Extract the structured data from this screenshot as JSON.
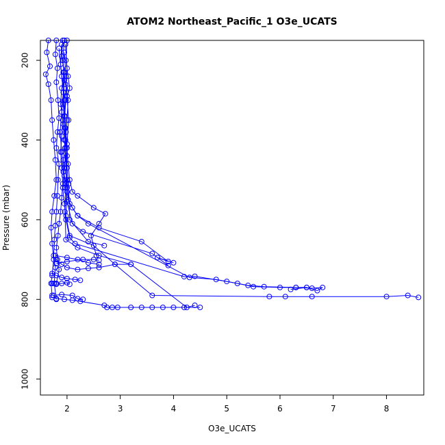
{
  "chart_data": {
    "type": "scatter",
    "title": "ATOM2 Northeast_Pacific_1 O3e_UCATS",
    "xlabel": "O3e_UCATS",
    "ylabel": "Pressure (mbar)",
    "xlim": [
      1.5,
      8.7
    ],
    "ylim": [
      1040,
      150
    ],
    "y_reversed": true,
    "xticks": [
      2,
      3,
      4,
      5,
      6,
      7,
      8
    ],
    "yticks": [
      200,
      400,
      600,
      800,
      1000
    ],
    "grid": false,
    "legend": "none",
    "marker": "open-circle",
    "color": "#0000ff",
    "series": [
      {
        "points": [
          [
            1.65,
            150
          ],
          [
            1.62,
            180
          ],
          [
            1.68,
            215
          ],
          [
            1.6,
            235
          ],
          [
            1.65,
            260
          ],
          [
            1.7,
            300
          ],
          [
            1.72,
            350
          ],
          [
            1.75,
            400
          ],
          [
            1.78,
            450
          ],
          [
            1.8,
            500
          ],
          [
            1.76,
            540
          ],
          [
            1.72,
            580
          ],
          [
            1.7,
            620
          ],
          [
            1.72,
            660
          ],
          [
            1.75,
            700
          ],
          [
            1.72,
            740
          ],
          [
            1.7,
            760
          ],
          [
            1.72,
            790
          ]
        ]
      },
      {
        "points": [
          [
            1.8,
            150
          ],
          [
            1.78,
            185
          ],
          [
            1.82,
            220
          ],
          [
            1.8,
            255
          ],
          [
            1.83,
            300
          ],
          [
            1.85,
            345
          ],
          [
            1.82,
            380
          ],
          [
            1.8,
            420
          ],
          [
            1.85,
            460
          ],
          [
            1.83,
            500
          ],
          [
            1.82,
            540
          ],
          [
            1.8,
            580
          ],
          [
            1.78,
            615
          ],
          [
            1.76,
            650
          ],
          [
            1.75,
            690
          ],
          [
            1.78,
            720
          ],
          [
            1.76,
            760
          ],
          [
            1.8,
            800
          ]
        ]
      },
      {
        "points": [
          [
            1.92,
            150
          ],
          [
            1.9,
            190
          ],
          [
            1.95,
            230
          ],
          [
            1.9,
            270
          ],
          [
            1.88,
            310
          ],
          [
            1.92,
            350
          ],
          [
            1.9,
            390
          ],
          [
            1.88,
            430
          ],
          [
            1.9,
            470
          ],
          [
            1.92,
            510
          ],
          [
            1.9,
            545
          ],
          [
            1.88,
            580
          ],
          [
            1.85,
            610
          ],
          [
            1.83,
            640
          ],
          [
            1.8,
            670
          ],
          [
            1.82,
            700
          ],
          [
            1.85,
            725
          ],
          [
            1.8,
            760
          ]
        ]
      },
      {
        "points": [
          [
            2.0,
            150
          ],
          [
            1.98,
            200
          ],
          [
            2.02,
            240
          ],
          [
            2.05,
            270
          ],
          [
            1.98,
            300
          ],
          [
            1.95,
            340
          ],
          [
            1.98,
            380
          ],
          [
            2.0,
            420
          ],
          [
            2.02,
            460
          ],
          [
            2.05,
            500
          ],
          [
            2.1,
            530
          ],
          [
            2.2,
            540
          ],
          [
            2.5,
            570
          ],
          [
            2.72,
            585
          ],
          [
            2.6,
            610
          ],
          [
            2.45,
            640
          ],
          [
            2.55,
            690
          ]
        ]
      },
      {
        "points": [
          [
            1.95,
            150
          ],
          [
            1.92,
            200
          ],
          [
            1.97,
            260
          ],
          [
            2.02,
            300
          ],
          [
            2.0,
            350
          ],
          [
            1.97,
            400
          ],
          [
            1.93,
            450
          ],
          [
            1.95,
            490
          ],
          [
            2.0,
            520
          ],
          [
            2.05,
            560
          ],
          [
            2.2,
            590
          ],
          [
            2.6,
            620
          ],
          [
            3.4,
            655
          ],
          [
            3.9,
            705
          ],
          [
            3.7,
            695
          ],
          [
            4.0,
            708
          ]
        ]
      },
      {
        "points": [
          [
            1.9,
            160
          ],
          [
            1.88,
            210
          ],
          [
            1.93,
            280
          ],
          [
            1.9,
            330
          ],
          [
            1.87,
            380
          ],
          [
            1.9,
            430
          ],
          [
            1.93,
            480
          ],
          [
            1.97,
            520
          ],
          [
            2.0,
            555
          ],
          [
            2.1,
            610
          ],
          [
            2.3,
            630
          ],
          [
            3.6,
            685
          ],
          [
            3.9,
            715
          ]
        ]
      },
      {
        "points": [
          [
            1.85,
            170
          ],
          [
            1.9,
            240
          ],
          [
            1.95,
            300
          ],
          [
            1.93,
            360
          ],
          [
            1.96,
            420
          ],
          [
            2.0,
            470
          ],
          [
            2.03,
            510
          ],
          [
            2.05,
            600
          ],
          [
            2.4,
            655
          ],
          [
            2.7,
            665
          ]
        ]
      },
      {
        "points": [
          [
            1.95,
            180
          ],
          [
            1.98,
            240
          ],
          [
            2.0,
            290
          ],
          [
            2.03,
            350
          ],
          [
            2.0,
            410
          ],
          [
            1.98,
            460
          ],
          [
            2.0,
            500
          ],
          [
            2.02,
            550
          ],
          [
            2.1,
            570
          ],
          [
            2.2,
            590
          ],
          [
            2.4,
            610
          ],
          [
            4.3,
            745
          ],
          [
            4.8,
            750
          ],
          [
            5.2,
            760
          ],
          [
            5.5,
            768
          ],
          [
            6.0,
            770
          ],
          [
            6.3,
            770
          ],
          [
            6.6,
            772
          ],
          [
            6.8,
            770
          ],
          [
            6.7,
            778
          ],
          [
            6.5,
            770
          ],
          [
            6.2,
            775
          ]
        ]
      },
      {
        "points": [
          [
            1.92,
            200
          ],
          [
            1.95,
            250
          ],
          [
            1.93,
            310
          ],
          [
            1.96,
            370
          ],
          [
            1.98,
            420
          ],
          [
            1.95,
            470
          ],
          [
            1.92,
            520
          ],
          [
            1.95,
            560
          ],
          [
            1.98,
            600
          ],
          [
            2.05,
            645
          ],
          [
            2.15,
            660
          ],
          [
            4.2,
            743
          ],
          [
            4.4,
            742
          ],
          [
            5.0,
            755
          ],
          [
            5.4,
            765
          ],
          [
            5.7,
            768
          ],
          [
            6.3,
            770
          ],
          [
            6.5,
            770
          ]
        ]
      },
      {
        "points": [
          [
            1.97,
            160
          ],
          [
            2.0,
            220
          ],
          [
            1.98,
            280
          ],
          [
            1.96,
            340
          ],
          [
            1.95,
            400
          ],
          [
            1.98,
            460
          ],
          [
            2.0,
            530
          ],
          [
            1.98,
            590
          ],
          [
            2.05,
            640
          ],
          [
            2.5,
            665
          ],
          [
            2.9,
            712
          ],
          [
            3.6,
            790
          ],
          [
            5.8,
            793
          ],
          [
            6.1,
            793
          ],
          [
            6.6,
            793
          ],
          [
            8.0,
            793
          ],
          [
            8.4,
            790
          ],
          [
            8.6,
            795
          ]
        ]
      },
      {
        "points": [
          [
            1.93,
            230
          ],
          [
            1.95,
            300
          ],
          [
            1.97,
            370
          ],
          [
            2.0,
            440
          ],
          [
            1.98,
            510
          ],
          [
            1.96,
            580
          ],
          [
            1.98,
            650
          ],
          [
            2.2,
            670
          ],
          [
            2.6,
            690
          ],
          [
            3.2,
            712
          ],
          [
            4.25,
            820
          ],
          [
            4.4,
            815
          ]
        ]
      },
      {
        "points": [
          [
            1.8,
            700
          ],
          [
            1.9,
            712
          ],
          [
            2.0,
            720
          ],
          [
            2.2,
            725
          ],
          [
            2.4,
            722
          ],
          [
            2.6,
            720
          ],
          [
            2.9,
            712
          ],
          [
            3.2,
            712
          ]
        ]
      },
      {
        "points": [
          [
            1.72,
            735
          ],
          [
            1.8,
            740
          ],
          [
            1.9,
            745
          ],
          [
            2.0,
            748
          ],
          [
            2.15,
            750
          ],
          [
            2.25,
            752
          ]
        ]
      },
      {
        "points": [
          [
            1.72,
            760
          ],
          [
            1.8,
            762
          ],
          [
            1.9,
            760
          ],
          [
            2.0,
            758
          ],
          [
            2.05,
            762
          ]
        ]
      },
      {
        "points": [
          [
            1.72,
            795
          ],
          [
            1.8,
            798
          ],
          [
            1.95,
            800
          ],
          [
            2.1,
            802
          ],
          [
            2.25,
            805
          ],
          [
            2.7,
            815
          ],
          [
            2.75,
            820
          ],
          [
            2.85,
            820
          ],
          [
            2.95,
            820
          ],
          [
            3.2,
            820
          ],
          [
            3.4,
            820
          ],
          [
            3.6,
            820
          ],
          [
            3.8,
            820
          ],
          [
            4.0,
            820
          ],
          [
            4.2,
            820
          ],
          [
            4.5,
            820
          ]
        ]
      },
      {
        "points": [
          [
            1.75,
            790
          ],
          [
            1.9,
            788
          ],
          [
            2.1,
            790
          ],
          [
            2.2,
            798
          ],
          [
            2.3,
            800
          ]
        ]
      },
      {
        "points": [
          [
            1.8,
            710
          ],
          [
            2.0,
            705
          ],
          [
            2.3,
            700
          ],
          [
            2.5,
            700
          ],
          [
            2.6,
            702
          ]
        ]
      },
      {
        "points": [
          [
            1.78,
            690
          ],
          [
            2.0,
            695
          ],
          [
            2.2,
            700
          ],
          [
            2.4,
            708
          ],
          [
            2.6,
            712
          ]
        ]
      }
    ]
  }
}
